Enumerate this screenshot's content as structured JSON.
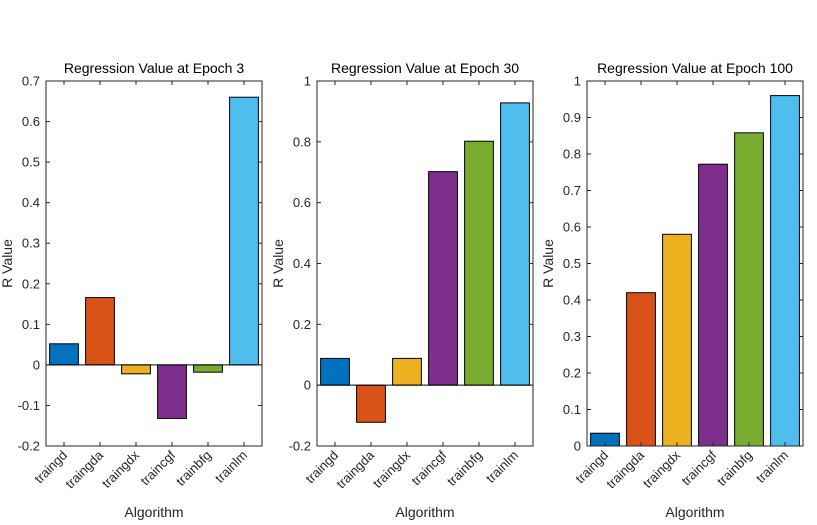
{
  "chart_data": [
    {
      "type": "bar",
      "title": "Regression Value at Epoch 3",
      "xlabel": "Algorithm",
      "ylabel": "R Value",
      "categories": [
        "traingd",
        "traingda",
        "traingdx",
        "traincgf",
        "trainbfg",
        "trainlm"
      ],
      "values": [
        0.052,
        0.166,
        -0.022,
        -0.132,
        -0.018,
        0.66
      ],
      "ylim": [
        -0.2,
        0.7
      ],
      "yticks": [
        -0.2,
        -0.1,
        0,
        0.1,
        0.2,
        0.3,
        0.4,
        0.5,
        0.6,
        0.7
      ],
      "ytick_labels": [
        "-0.2",
        "-0.1",
        "0",
        "0.1",
        "0.2",
        "0.3",
        "0.4",
        "0.5",
        "0.6",
        "0.7"
      ]
    },
    {
      "type": "bar",
      "title": "Regression Value at Epoch 30",
      "xlabel": "Algorithm",
      "ylabel": "R Value",
      "categories": [
        "traingd",
        "traingda",
        "traingdx",
        "traincgf",
        "trainbfg",
        "trainlm"
      ],
      "values": [
        0.088,
        -0.122,
        0.088,
        0.702,
        0.802,
        0.928
      ],
      "ylim": [
        -0.2,
        1
      ],
      "yticks": [
        -0.2,
        0,
        0.2,
        0.4,
        0.6,
        0.8,
        1
      ],
      "ytick_labels": [
        "-0.2",
        "0",
        "0.2",
        "0.4",
        "0.6",
        "0.8",
        "1"
      ]
    },
    {
      "type": "bar",
      "title": "Regression Value at Epoch 100",
      "xlabel": "Algorithm",
      "ylabel": "R Value",
      "categories": [
        "traingd",
        "traingda",
        "traingdx",
        "traincgf",
        "trainbfg",
        "trainlm"
      ],
      "values": [
        0.035,
        0.42,
        0.58,
        0.772,
        0.858,
        0.96
      ],
      "ylim": [
        0,
        1
      ],
      "yticks": [
        0,
        0.1,
        0.2,
        0.3,
        0.4,
        0.5,
        0.6,
        0.7,
        0.8,
        0.9,
        1
      ],
      "ytick_labels": [
        "0",
        "0.1",
        "0.2",
        "0.3",
        "0.4",
        "0.5",
        "0.6",
        "0.7",
        "0.8",
        "0.9",
        "1"
      ]
    }
  ],
  "colors": [
    "#0072BD",
    "#D95319",
    "#EDB120",
    "#7E2F8E",
    "#77AC30",
    "#4DBEEE"
  ]
}
